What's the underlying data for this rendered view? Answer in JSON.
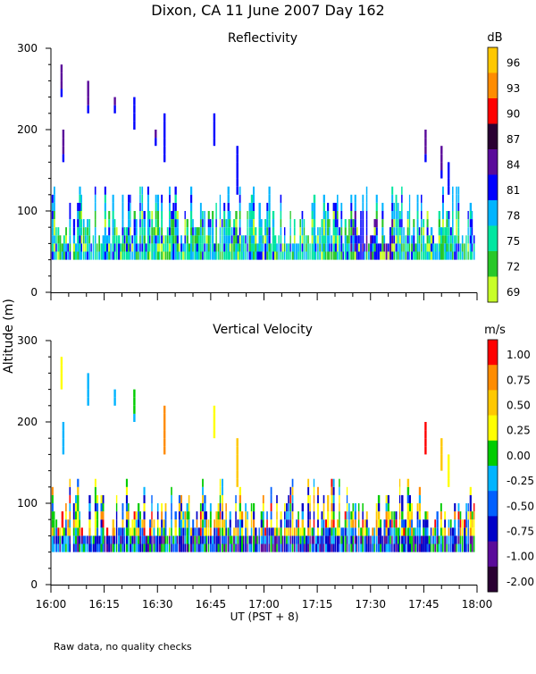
{
  "title": "Dixon, CA 11 June 2007  Day 162",
  "ylabel": "Altitude (m)",
  "xlabel": "UT   (PST + 8)",
  "footnote": "Raw data, no quality checks",
  "x_ticks": [
    "16:00",
    "16:15",
    "16:30",
    "16:45",
    "17:00",
    "17:15",
    "17:30",
    "17:45",
    "18:00"
  ],
  "y_ticks": [
    "0",
    "100",
    "200",
    "300"
  ],
  "chart_data": [
    {
      "type": "heatmap",
      "title": "Reflectivity",
      "xlabel": "UT   (PST + 8)",
      "ylabel": "Altitude (m)",
      "x_range_minutes_after_1600": [
        0,
        120
      ],
      "ylim": [
        0,
        300
      ],
      "colorbar": {
        "unit": "dB",
        "labels": [
          "96",
          "93",
          "90",
          "87",
          "84",
          "81",
          "78",
          "75",
          "72",
          "69"
        ],
        "colors": [
          "#ffc800",
          "#ff8c00",
          "#ff0000",
          "#2a0033",
          "#5a0a9a",
          "#0000ff",
          "#00b4ff",
          "#00e6a0",
          "#28c828",
          "#c8ff28"
        ]
      },
      "echo_base_m": 40,
      "echo_top_typical_m": 100,
      "echo_max_m": 280,
      "plumes": [
        {
          "t": 3,
          "top": 280,
          "bottom": 240,
          "c": 4
        },
        {
          "t": 3.5,
          "top": 200,
          "bottom": 160,
          "c": 4
        },
        {
          "t": 10.5,
          "top": 260,
          "bottom": 220,
          "c": 4
        },
        {
          "t": 18,
          "top": 240,
          "bottom": 220,
          "c": 4
        },
        {
          "t": 23.5,
          "top": 240,
          "bottom": 200,
          "c": 5
        },
        {
          "t": 29.5,
          "top": 200,
          "bottom": 180,
          "c": 4
        },
        {
          "t": 32,
          "top": 220,
          "bottom": 160,
          "c": 5
        },
        {
          "t": 46,
          "top": 220,
          "bottom": 180,
          "c": 5
        },
        {
          "t": 52.5,
          "top": 180,
          "bottom": 120,
          "c": 5
        },
        {
          "t": 105.5,
          "top": 200,
          "bottom": 160,
          "c": 4
        },
        {
          "t": 110,
          "top": 180,
          "bottom": 140,
          "c": 4
        },
        {
          "t": 112,
          "top": 160,
          "bottom": 120,
          "c": 5
        }
      ]
    },
    {
      "type": "heatmap",
      "title": "Vertical Velocity",
      "xlabel": "UT   (PST + 8)",
      "ylabel": "Altitude (m)",
      "x_range_minutes_after_1600": [
        0,
        120
      ],
      "ylim": [
        0,
        300
      ],
      "colorbar": {
        "unit": "m/s",
        "labels": [
          "1.00",
          "0.75",
          "0.50",
          "0.25",
          "0.00",
          "-0.25",
          "-0.50",
          "-0.75",
          "-1.00",
          "-2.00"
        ],
        "colors": [
          "#ff0000",
          "#ff8c00",
          "#ffc800",
          "#ffff00",
          "#00cc00",
          "#00b4ff",
          "#0060ff",
          "#0000c8",
          "#5a0a9a",
          "#2a0033"
        ]
      },
      "echo_base_m": 40,
      "echo_top_typical_m": 100,
      "echo_max_m": 280,
      "plumes": [
        {
          "t": 3,
          "top": 280,
          "bottom": 240,
          "c": 3
        },
        {
          "t": 3.5,
          "top": 200,
          "bottom": 160,
          "c": 5
        },
        {
          "t": 10.5,
          "top": 260,
          "bottom": 220,
          "c": 5
        },
        {
          "t": 18,
          "top": 240,
          "bottom": 220,
          "c": 5
        },
        {
          "t": 23.5,
          "top": 240,
          "bottom": 200,
          "c": 4
        },
        {
          "t": 32,
          "top": 220,
          "bottom": 160,
          "c": 1
        },
        {
          "t": 46,
          "top": 220,
          "bottom": 180,
          "c": 3
        },
        {
          "t": 52.5,
          "top": 180,
          "bottom": 120,
          "c": 2
        },
        {
          "t": 105.5,
          "top": 200,
          "bottom": 160,
          "c": 0
        },
        {
          "t": 110,
          "top": 180,
          "bottom": 140,
          "c": 2
        },
        {
          "t": 112,
          "top": 160,
          "bottom": 120,
          "c": 3
        }
      ]
    }
  ]
}
